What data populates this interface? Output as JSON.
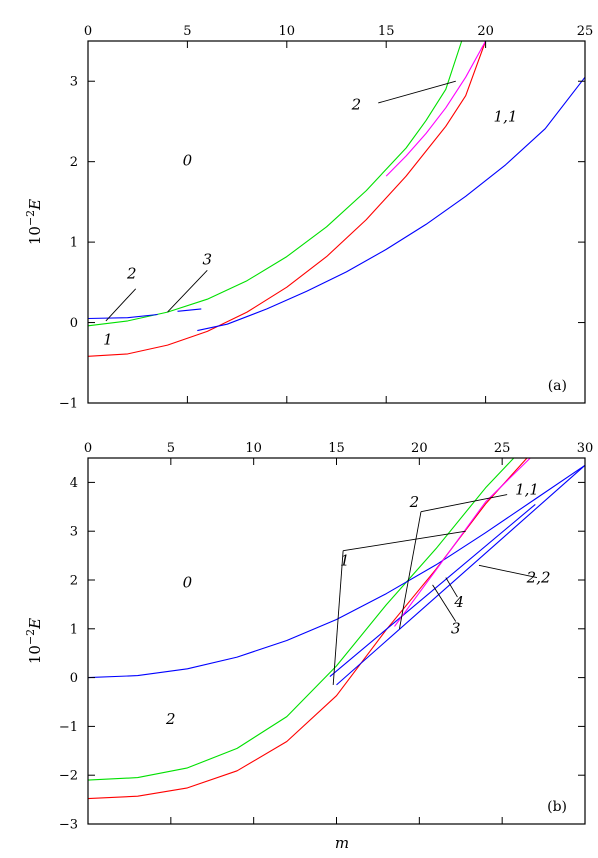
{
  "chart_data": [
    {
      "type": "line",
      "panel_label": "(a)",
      "ylabel_base": "10",
      "ylabel_exp": "−2",
      "ylabel_var": "E",
      "xlim": [
        0,
        25
      ],
      "ylim": [
        -1,
        3.5
      ],
      "xticks": [
        0,
        5,
        10,
        15,
        20,
        25
      ],
      "yticks": [
        -1,
        0,
        1,
        2,
        3
      ],
      "xtick_labels": [
        "0",
        "5",
        "10",
        "15",
        "20",
        "25"
      ],
      "ytick_labels": [
        "−1",
        "0",
        "1",
        "2",
        "3"
      ],
      "series": [
        {
          "color": "#ff0000",
          "x": [
            0,
            2,
            4,
            6,
            8,
            10,
            12,
            14,
            16,
            18,
            19,
            20
          ],
          "y": [
            -0.42,
            -0.39,
            -0.28,
            -0.11,
            0.13,
            0.44,
            0.82,
            1.28,
            1.82,
            2.44,
            2.82,
            3.5
          ]
        },
        {
          "color": "#00e000",
          "x": [
            0,
            2,
            4,
            6,
            8,
            10,
            12,
            14,
            16,
            17,
            18,
            18.8
          ],
          "y": [
            -0.04,
            0.02,
            0.13,
            0.29,
            0.52,
            0.82,
            1.19,
            1.64,
            2.17,
            2.51,
            2.9,
            3.5
          ]
        },
        {
          "color": "#0000ff",
          "x": [
            0,
            2,
            3.5
          ],
          "y": [
            0.05,
            0.06,
            0.1
          ]
        },
        {
          "color": "#0000ff",
          "x": [
            4.5,
            5.7
          ],
          "y": [
            0.14,
            0.17
          ]
        },
        {
          "color": "#0000ff",
          "x": [
            5.5,
            7,
            9,
            11,
            13,
            15,
            17,
            19,
            21,
            23,
            25
          ],
          "y": [
            -0.1,
            -0.02,
            0.17,
            0.39,
            0.63,
            0.91,
            1.22,
            1.57,
            1.96,
            2.41,
            3.05
          ]
        },
        {
          "color": "#ff00ff",
          "x": [
            15,
            16,
            17,
            18,
            19,
            20
          ],
          "y": [
            1.82,
            2.07,
            2.35,
            2.67,
            3.05,
            3.5
          ]
        }
      ],
      "annotations": [
        {
          "text": "0",
          "x": 5,
          "y": 1.95
        },
        {
          "text": "1",
          "x": 1,
          "y": -0.27
        },
        {
          "text": "1,1",
          "x": 21,
          "y": 2.5
        },
        {
          "text": "2",
          "x": 2.2,
          "y": 0.55
        },
        {
          "text": "3",
          "x": 6,
          "y": 0.72
        },
        {
          "text": "2",
          "x": 13.5,
          "y": 2.65
        }
      ],
      "pointers": [
        {
          "from": [
            2.4,
            0.42
          ],
          "to": [
            0.9,
            0.02
          ]
        },
        {
          "from": [
            6,
            0.65
          ],
          "to": [
            4.0,
            0.13
          ]
        },
        {
          "from": [
            14.6,
            2.73
          ],
          "to": [
            18.5,
            3.0
          ]
        }
      ]
    },
    {
      "type": "line",
      "panel_label": "(b)",
      "xlabel": "m",
      "ylabel_base": "10",
      "ylabel_exp": "−2",
      "ylabel_var": "E",
      "xlim": [
        0,
        30
      ],
      "ylim": [
        -3,
        4.5
      ],
      "xticks": [
        0,
        5,
        10,
        15,
        20,
        25,
        30
      ],
      "yticks": [
        -3,
        -2,
        -1,
        0,
        1,
        2,
        3,
        4
      ],
      "xtick_labels": [
        "0",
        "5",
        "10",
        "15",
        "20",
        "25",
        "30"
      ],
      "ytick_labels": [
        "−3",
        "−2",
        "−1",
        "0",
        "1",
        "2",
        "3",
        "4"
      ],
      "series": [
        {
          "color": "#ff0000",
          "x": [
            0,
            3,
            6,
            9,
            12,
            15,
            18,
            21,
            24,
            26.5
          ],
          "y": [
            -2.48,
            -2.43,
            -2.26,
            -1.91,
            -1.31,
            -0.37,
            0.98,
            2.22,
            3.56,
            4.5
          ]
        },
        {
          "color": "#00e000",
          "x": [
            0,
            3,
            6,
            9,
            12,
            15,
            18,
            21,
            24,
            25.7
          ],
          "y": [
            -2.1,
            -2.05,
            -1.85,
            -1.45,
            -0.8,
            0.24,
            1.49,
            2.64,
            3.89,
            4.5
          ]
        },
        {
          "color": "#0000ff",
          "x": [
            0,
            3,
            6,
            9,
            12,
            15,
            18,
            21,
            24,
            27,
            30
          ],
          "y": [
            0,
            0.04,
            0.18,
            0.42,
            0.76,
            1.19,
            1.72,
            2.31,
            2.97,
            3.66,
            4.35
          ]
        },
        {
          "color": "#0000ff",
          "x": [
            14.6,
            27
          ],
          "y": [
            0.02,
            3.55
          ]
        },
        {
          "color": "#0000ff",
          "x": [
            15,
            30
          ],
          "y": [
            -0.15,
            4.35
          ]
        },
        {
          "color": "#ff00ff",
          "x": [
            18.5,
            21,
            24,
            26.7
          ],
          "y": [
            1.05,
            2.2,
            3.6,
            4.5
          ]
        }
      ],
      "annotations": [
        {
          "text": "0",
          "x": 6,
          "y": 1.85
        },
        {
          "text": "2",
          "x": 5,
          "y": -0.95
        },
        {
          "text": "1",
          "x": 15.5,
          "y": 2.3
        },
        {
          "text": "2",
          "x": 19.7,
          "y": 3.5
        },
        {
          "text": "1,1",
          "x": 26.5,
          "y": 3.75
        },
        {
          "text": "2,2",
          "x": 27.2,
          "y": 1.95
        },
        {
          "text": "4",
          "x": 22.4,
          "y": 1.45
        },
        {
          "text": "3",
          "x": 22.2,
          "y": 0.9
        }
      ],
      "pointers": [
        {
          "from": [
            15.4,
            2.6
          ],
          "to": [
            14.8,
            -0.15
          ]
        },
        {
          "from": [
            15.4,
            2.6
          ],
          "to": [
            22.8,
            3.0
          ]
        },
        {
          "from": [
            20.1,
            3.4
          ],
          "to": [
            18.8,
            1.0
          ]
        },
        {
          "from": [
            20.1,
            3.4
          ],
          "to": [
            25.3,
            3.75
          ]
        },
        {
          "from": [
            27.1,
            2.05
          ],
          "to": [
            23.6,
            2.3
          ]
        },
        {
          "from": [
            22.3,
            1.65
          ],
          "to": [
            21.6,
            2.05
          ]
        },
        {
          "from": [
            22.2,
            1.15
          ],
          "to": [
            20.8,
            1.9
          ]
        }
      ]
    }
  ]
}
